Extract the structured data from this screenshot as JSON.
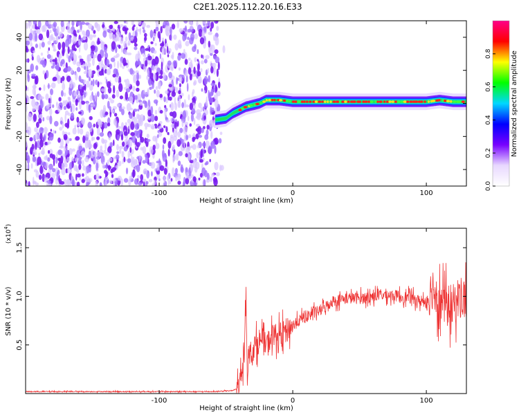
{
  "title": "C2E1.2025.112.20.16.E33",
  "chart_data": [
    {
      "type": "heatmap",
      "xlabel": "Height of straight line (km)",
      "ylabel": "Frequency (Hz)",
      "xlim": [
        -200,
        130
      ],
      "ylim": [
        -50,
        50
      ],
      "xticks": [
        -100,
        0,
        100
      ],
      "yticks": [
        -40,
        -20,
        0,
        20,
        40
      ],
      "colorbar": {
        "label": "Normalized spectral amplitude",
        "range": [
          0,
          1
        ],
        "ticks": [
          "0.0",
          "0.2",
          "0.4",
          "0.6",
          "0.8"
        ],
        "colors": [
          "#ffffff",
          "#e8d8ff",
          "#7700ff",
          "#0000ff",
          "#00d8ff",
          "#00ff00",
          "#ffff00",
          "#ff0000",
          "#ff0088"
        ]
      },
      "noise_region": {
        "x": [
          -200,
          -55
        ]
      },
      "ridge": {
        "x": [
          -58,
          -50,
          -45,
          -40,
          -35,
          -30,
          -25,
          -20,
          -10,
          0,
          20,
          40,
          60,
          80,
          100,
          110,
          120,
          130
        ],
        "freq": [
          -10,
          -9,
          -6,
          -4,
          -2,
          -1,
          0,
          2,
          2,
          1,
          1,
          1,
          1,
          1,
          1,
          2,
          1,
          1
        ]
      }
    },
    {
      "type": "line",
      "xlabel": "Height of straight line (km)",
      "ylabel": "SNR (10 * v/v)",
      "y_multiplier": "(x10",
      "y_multiplier_exp": "4",
      "y_multiplier_close": ")",
      "xlim": [
        -200,
        130
      ],
      "ylim": [
        0,
        1.7
      ],
      "xticks": [
        -100,
        0,
        100
      ],
      "yticks": [
        "0.5",
        "1.0",
        "1.5"
      ],
      "color": "#ee3333",
      "series": [
        {
          "x": [
            -200,
            -150,
            -100,
            -60,
            -45,
            -42,
            -38,
            -36,
            -35,
            -34,
            -33,
            -30,
            -25,
            -20,
            -15,
            -10,
            -5,
            0,
            10,
            20,
            30,
            40,
            50,
            60,
            70,
            80,
            90,
            95,
            100,
            105,
            110,
            115,
            120,
            125,
            130
          ],
          "values": [
            0.02,
            0.02,
            0.02,
            0.02,
            0.03,
            0.05,
            0.15,
            0.45,
            1.05,
            0.2,
            0.4,
            0.45,
            0.55,
            0.5,
            0.6,
            0.6,
            0.65,
            0.7,
            0.8,
            0.85,
            0.95,
            0.98,
            0.98,
            1.0,
            1.02,
            1.0,
            0.98,
            0.95,
            0.95,
            1.1,
            0.95,
            0.9,
            0.9,
            1.0,
            0.95
          ]
        }
      ]
    }
  ]
}
